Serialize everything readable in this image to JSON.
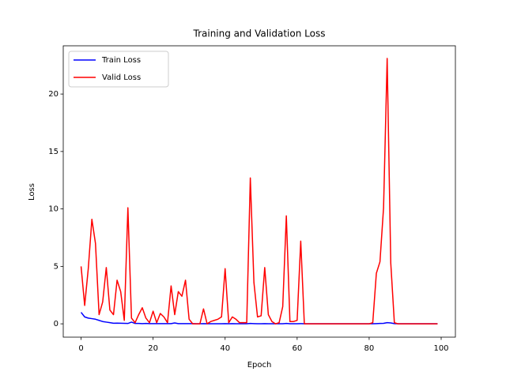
{
  "chart_data": {
    "type": "line",
    "title": "Training and Validation Loss",
    "xlabel": "Epoch",
    "ylabel": "Loss",
    "legend": "upper left",
    "x": [
      0,
      1,
      2,
      3,
      4,
      5,
      6,
      7,
      8,
      9,
      10,
      11,
      12,
      13,
      14,
      15,
      16,
      17,
      18,
      19,
      20,
      21,
      22,
      23,
      24,
      25,
      26,
      27,
      28,
      29,
      30,
      31,
      32,
      33,
      34,
      35,
      36,
      37,
      38,
      39,
      40,
      41,
      42,
      43,
      44,
      45,
      46,
      47,
      48,
      49,
      50,
      51,
      52,
      53,
      54,
      55,
      56,
      57,
      58,
      59,
      60,
      61,
      62,
      63,
      64,
      65,
      66,
      67,
      68,
      69,
      70,
      71,
      72,
      73,
      74,
      75,
      76,
      77,
      78,
      79,
      80,
      81,
      82,
      83,
      84,
      85,
      86,
      87,
      88,
      89,
      90,
      91,
      92,
      93,
      94,
      95,
      96,
      97,
      98,
      99
    ],
    "series": [
      {
        "name": "Train Loss",
        "color": "#0000ff",
        "values": [
          1.0,
          0.6,
          0.5,
          0.45,
          0.4,
          0.3,
          0.2,
          0.15,
          0.1,
          0.05,
          0.06,
          0.05,
          0.04,
          0.03,
          0.15,
          0.03,
          0.03,
          0.02,
          0.03,
          0.02,
          0.02,
          0.02,
          0.02,
          0.02,
          0.02,
          0.02,
          0.08,
          0.02,
          0.02,
          0.02,
          0.02,
          0.02,
          0.01,
          0.01,
          0.02,
          0.01,
          0.01,
          0.01,
          0.01,
          0.01,
          0.02,
          0.01,
          0.02,
          0.01,
          0.01,
          0.01,
          0.01,
          0.03,
          0.02,
          0.01,
          0.01,
          0.02,
          0.01,
          0.01,
          0.01,
          0.01,
          0.01,
          0.03,
          0.01,
          0.01,
          0.01,
          0.02,
          0.01,
          0.01,
          0.01,
          0.01,
          0.01,
          0.01,
          0.01,
          0.01,
          0.01,
          0.01,
          0.01,
          0.01,
          0.01,
          0.01,
          0.01,
          0.01,
          0.01,
          0.01,
          0.01,
          0.01,
          0.02,
          0.03,
          0.04,
          0.1,
          0.08,
          0.02,
          0.01,
          0.01,
          0.01,
          0.01,
          0.01,
          0.01,
          0.01,
          0.01,
          0.01,
          0.01,
          0.01,
          0.01
        ]
      },
      {
        "name": "Valid Loss",
        "color": "#ff0000",
        "values": [
          5.0,
          1.6,
          4.8,
          9.1,
          7.0,
          0.8,
          1.9,
          4.9,
          1.2,
          0.8,
          3.8,
          2.8,
          0.3,
          10.1,
          0.5,
          0.1,
          0.8,
          1.4,
          0.5,
          0.1,
          1.1,
          0.1,
          0.9,
          0.6,
          0.1,
          3.3,
          0.8,
          2.8,
          2.4,
          3.8,
          0.4,
          0.0,
          0.0,
          0.0,
          1.3,
          0.0,
          0.2,
          0.3,
          0.4,
          0.6,
          4.8,
          0.1,
          0.6,
          0.4,
          0.1,
          0.1,
          0.1,
          12.7,
          3.6,
          0.6,
          0.7,
          4.9,
          0.8,
          0.2,
          0.0,
          0.1,
          1.5,
          9.4,
          0.2,
          0.2,
          0.3,
          7.2,
          0.0,
          0.0,
          0.0,
          0.0,
          0.0,
          0.0,
          0.0,
          0.0,
          0.0,
          0.0,
          0.0,
          0.0,
          0.0,
          0.0,
          0.0,
          0.0,
          0.0,
          0.0,
          0.0,
          0.1,
          4.4,
          5.4,
          10.1,
          23.1,
          5.3,
          0.1,
          0.0,
          0.0,
          0.0,
          0.0,
          0.0,
          0.0,
          0.0,
          0.0,
          0.0,
          0.0,
          0.0,
          0.0
        ]
      }
    ],
    "xlim": [
      -4.95,
      103.95
    ],
    "xticks": [
      0,
      20,
      40,
      60,
      80,
      100
    ],
    "ylim": [
      -1.16,
      24.2
    ],
    "yticks": [
      0,
      5,
      10,
      15,
      20
    ]
  }
}
